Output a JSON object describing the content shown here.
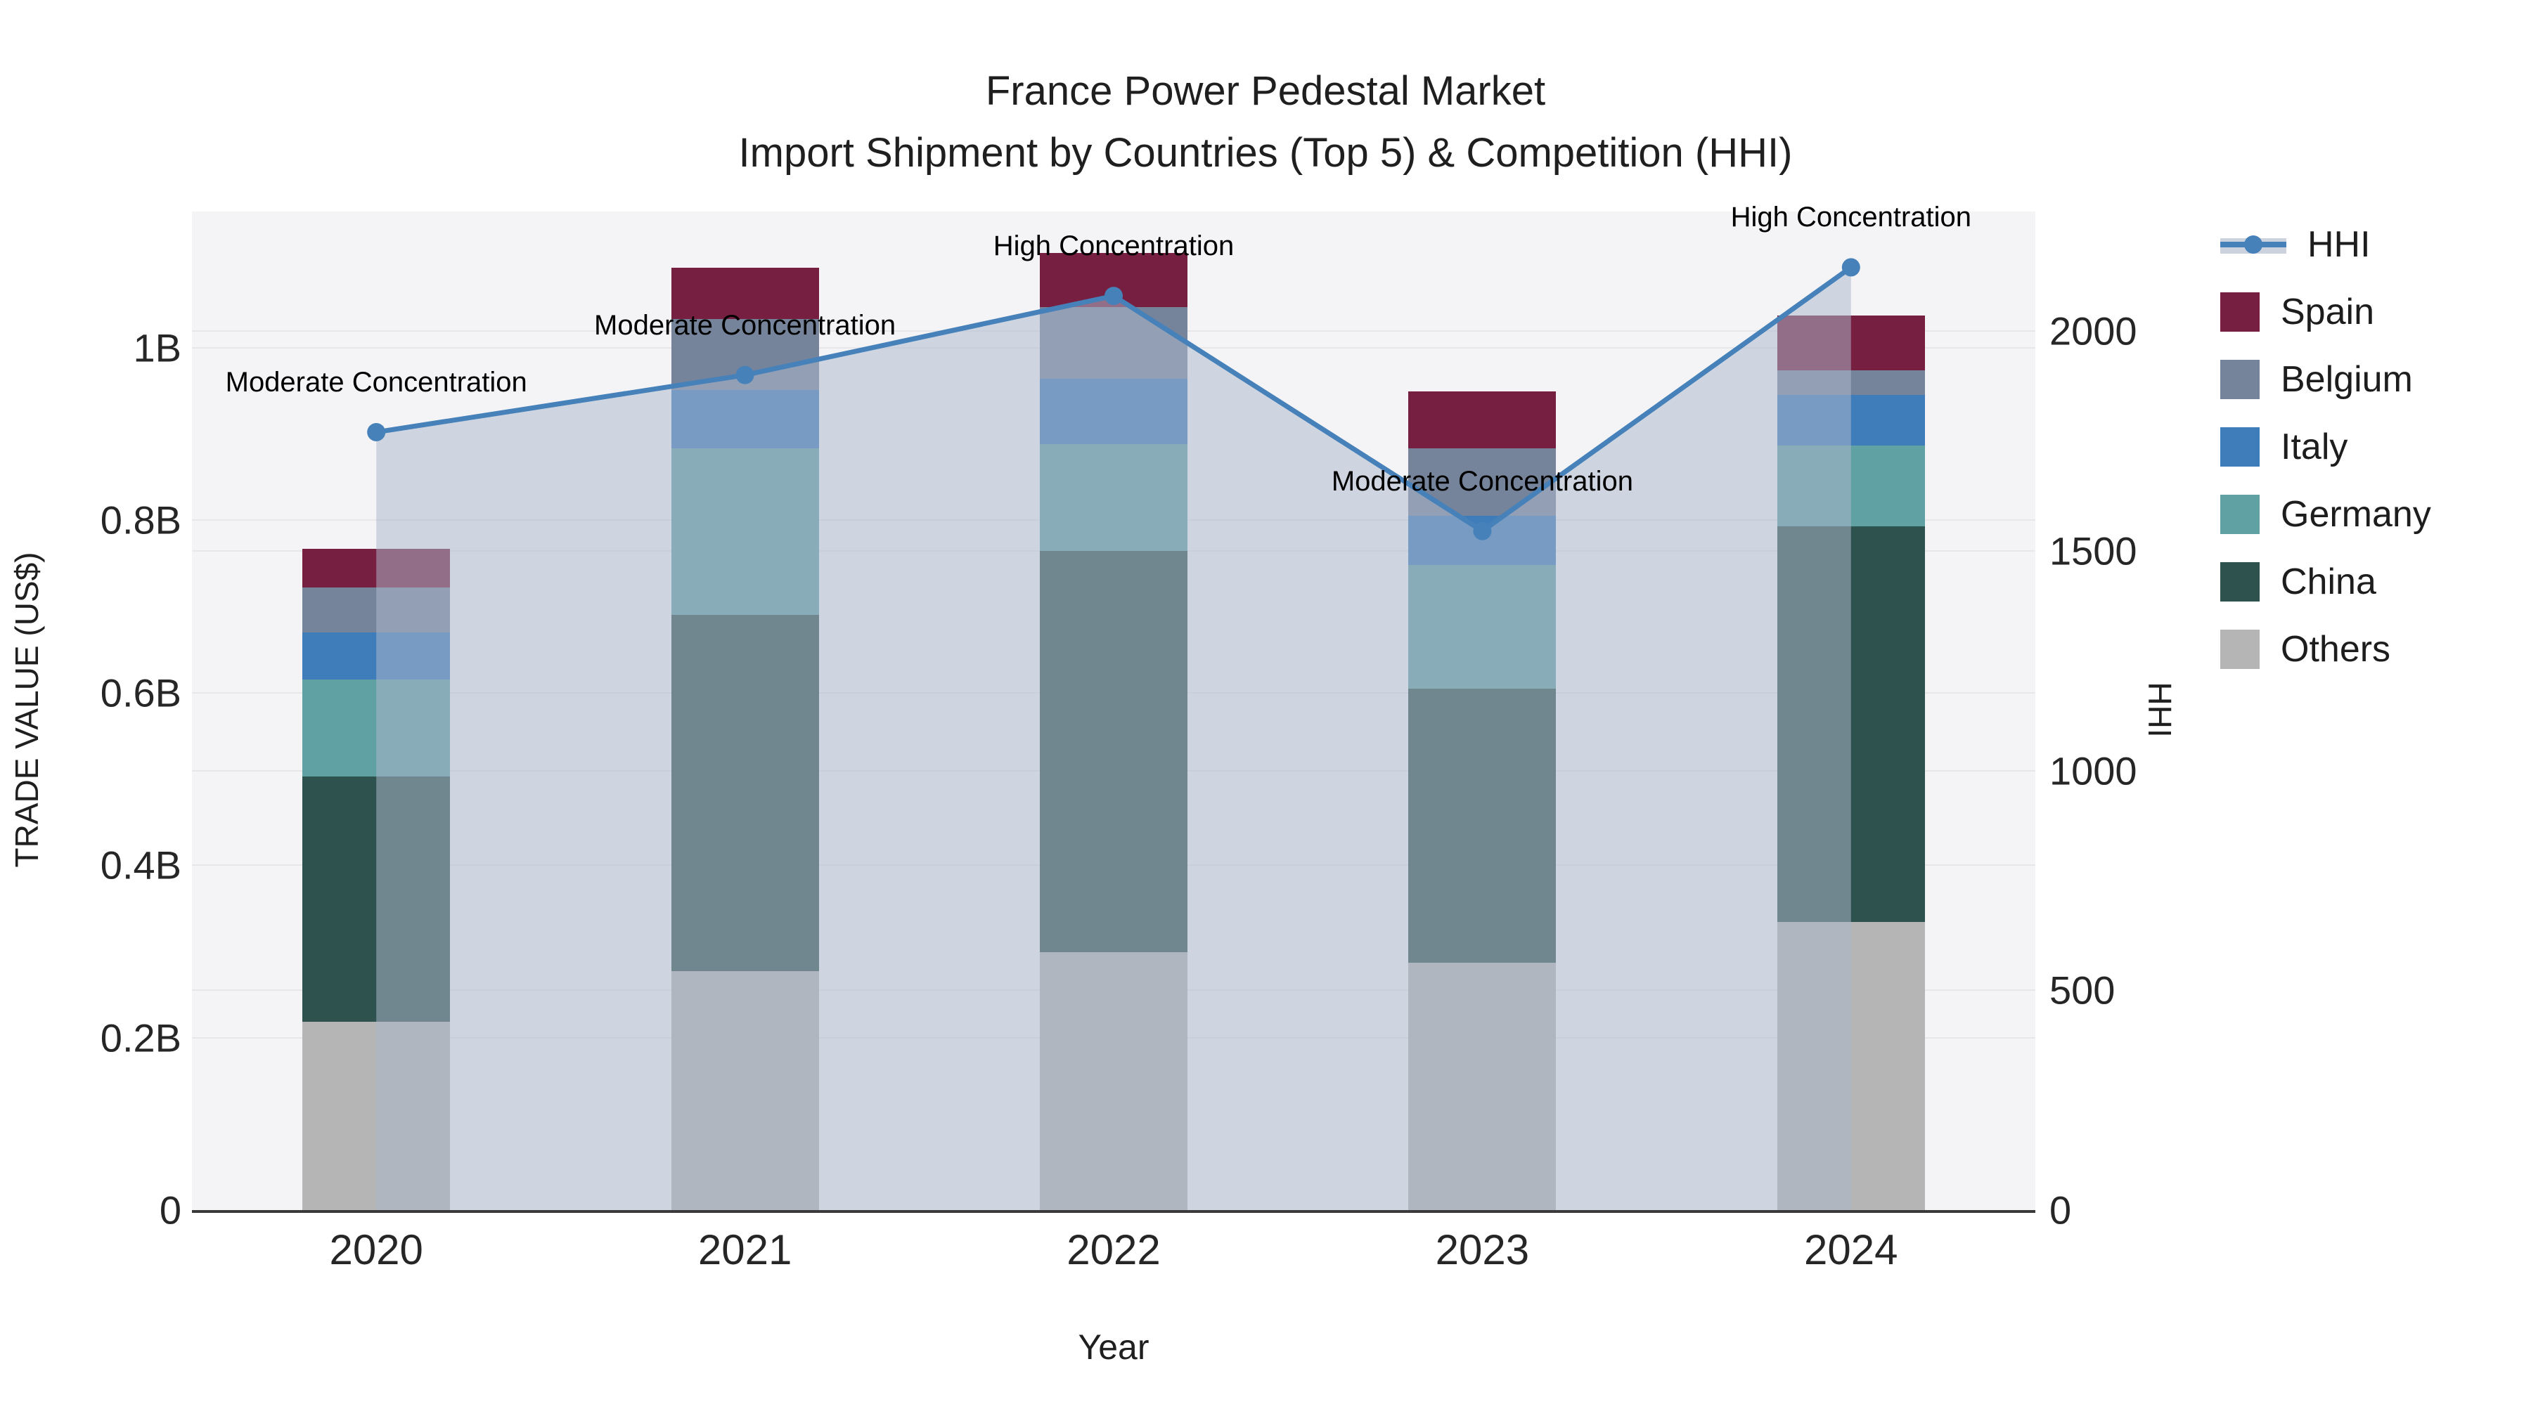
{
  "chart_data": {
    "type": "bar",
    "stacked": true,
    "title": "France Power Pedestal Market",
    "subtitle": "Import Shipment by Countries (Top 5) & Competition (HHI)",
    "xlabel": "Year",
    "ylabel_left": "TRADE VALUE (US$)",
    "ylabel_right": "HHI",
    "categories": [
      "2020",
      "2021",
      "2022",
      "2023",
      "2024"
    ],
    "series": [
      {
        "name": "Spain",
        "color": "#771f40",
        "values": [
          0.045,
          0.06,
          0.063,
          0.066,
          0.063
        ]
      },
      {
        "name": "Belgium",
        "color": "#76849b",
        "values": [
          0.052,
          0.082,
          0.083,
          0.078,
          0.029
        ]
      },
      {
        "name": "Italy",
        "color": "#3e7cba",
        "values": [
          0.055,
          0.068,
          0.076,
          0.057,
          0.058
        ]
      },
      {
        "name": "Germany",
        "color": "#60a1a4",
        "values": [
          0.112,
          0.193,
          0.124,
          0.143,
          0.094
        ]
      },
      {
        "name": "China",
        "color": "#2e524e",
        "values": [
          0.285,
          0.413,
          0.465,
          0.318,
          0.459
        ]
      },
      {
        "name": "Others",
        "color": "#b4b5b4",
        "values": [
          0.218,
          0.277,
          0.299,
          0.287,
          0.334
        ]
      }
    ],
    "line_series": {
      "name": "HHI",
      "axis": "right",
      "color": "#4681b9",
      "area_fill": "rgba(172,184,204,0.52)",
      "values": [
        1770,
        1900,
        2080,
        1545,
        2145
      ]
    },
    "annotations": [
      {
        "index": 0,
        "text": "Moderate Concentration"
      },
      {
        "index": 1,
        "text": "Moderate Concentration"
      },
      {
        "index": 2,
        "text": "High Concentration"
      },
      {
        "index": 3,
        "text": "Moderate Concentration"
      },
      {
        "index": 4,
        "text": "High Concentration"
      }
    ],
    "y_left": {
      "max": 1.158,
      "tick_labels": [
        "0",
        "0.2B",
        "0.4B",
        "0.6B",
        "0.8B",
        "1B"
      ],
      "tick_values": [
        0,
        0.2,
        0.4,
        0.6,
        0.8,
        1.0
      ]
    },
    "y_right": {
      "max": 2272,
      "tick_labels": [
        "0",
        "500",
        "1000",
        "1500",
        "2000"
      ],
      "tick_values": [
        0,
        500,
        1000,
        1500,
        2000
      ]
    },
    "legend_position": "right",
    "grid": true,
    "legend": {
      "entries": [
        {
          "label": "HHI",
          "swatch": "line"
        },
        {
          "label": "Spain",
          "swatch": "#771f40"
        },
        {
          "label": "Belgium",
          "swatch": "#76849b"
        },
        {
          "label": "Italy",
          "swatch": "#3e7cba"
        },
        {
          "label": "Germany",
          "swatch": "#60a1a4"
        },
        {
          "label": "China",
          "swatch": "#2e524e"
        },
        {
          "label": "Others",
          "swatch": "#b4b5b4"
        }
      ]
    }
  }
}
